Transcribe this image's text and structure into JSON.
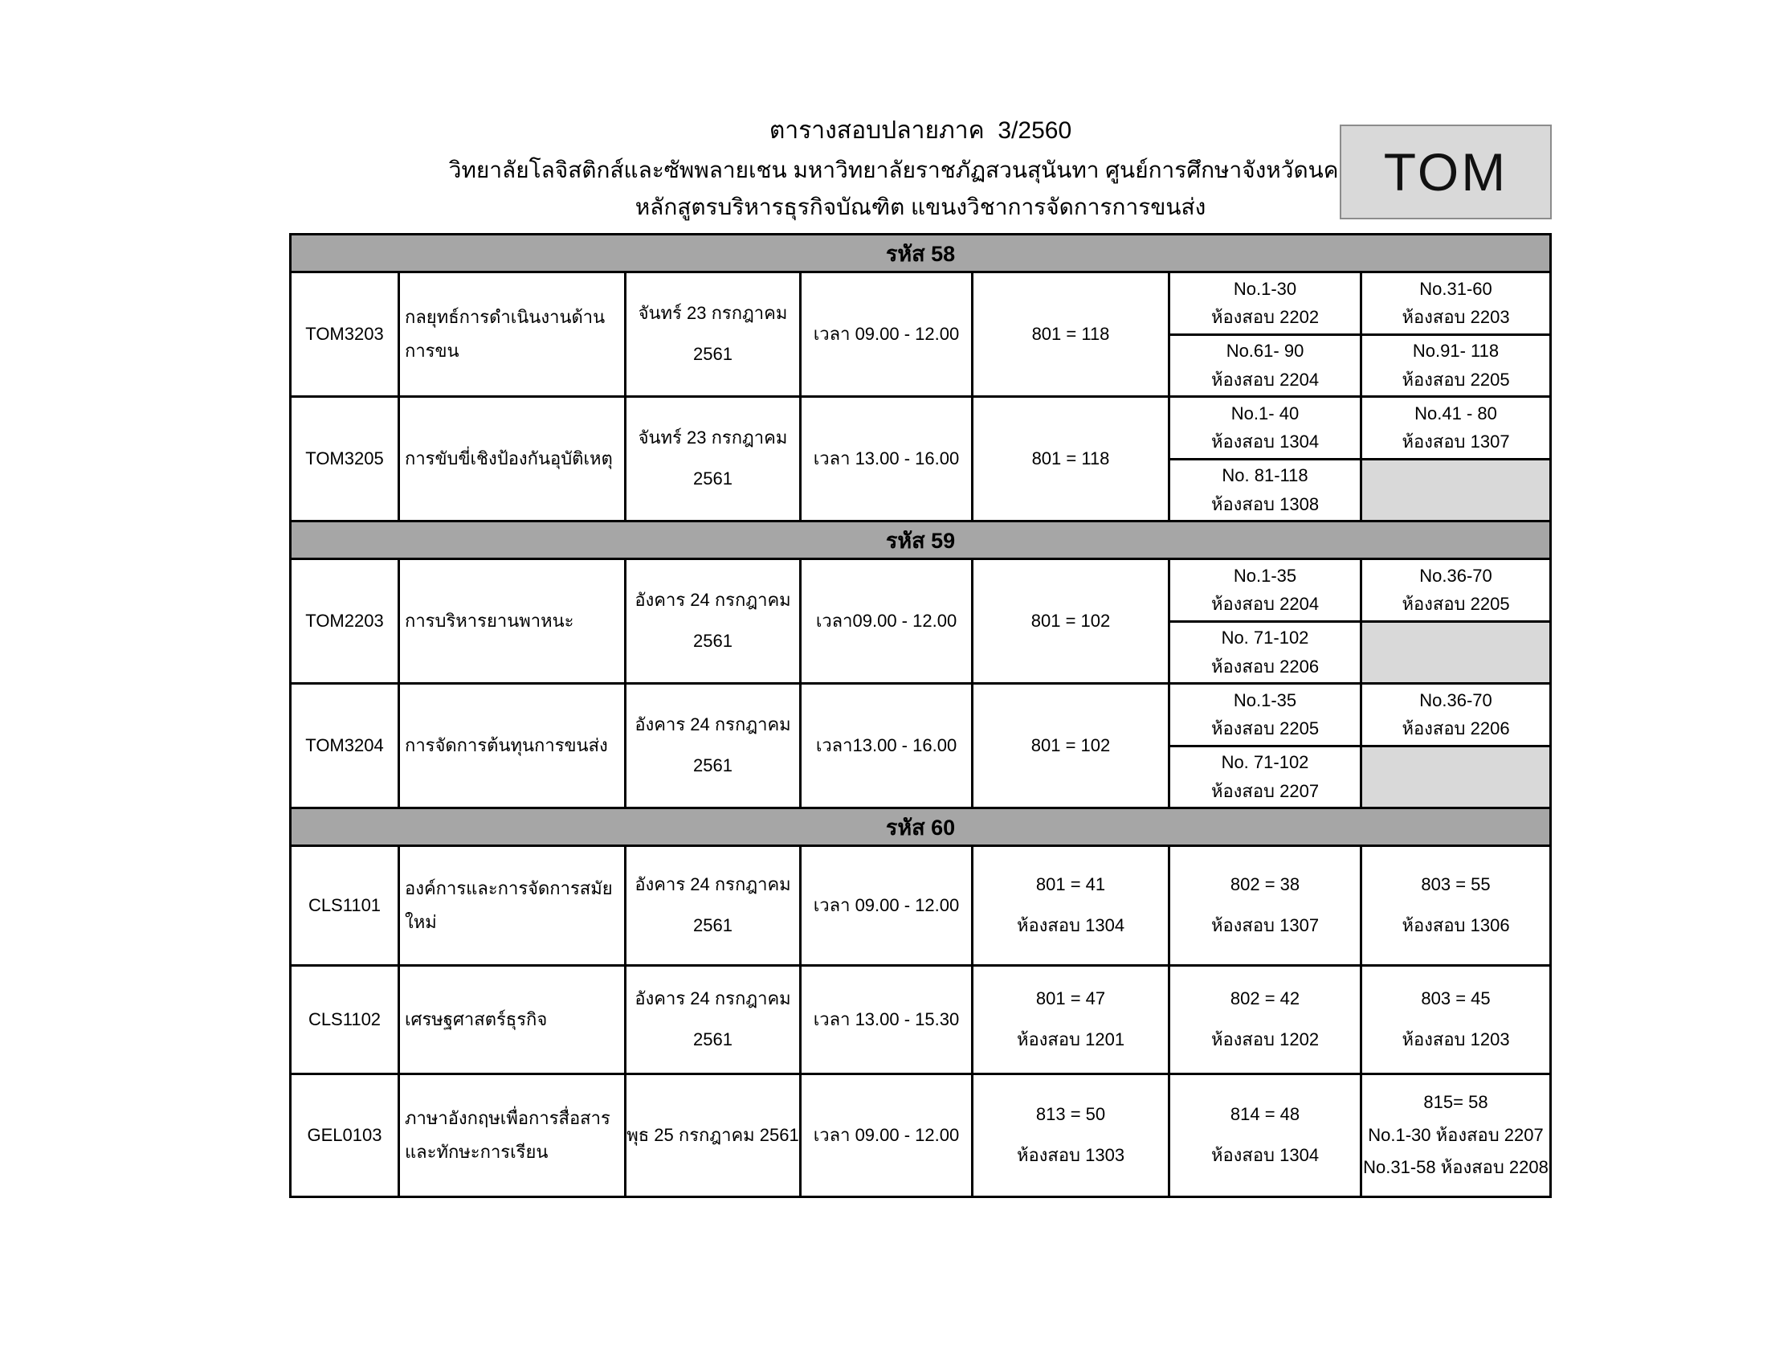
{
  "header": {
    "title": "ตารางสอบปลายภาค  3/2560",
    "subtitle1": "วิทยาลัยโลจิสติกส์และซัพพลายเชน มหาวิทยาลัยราชภัฏสวนสุนันทา ศูนย์การศึกษาจังหวัดนครปฐม",
    "subtitle2": "หลักสูตรบริหารธุรกิจบัณฑิต แขนงวิชาการจัดการการขนส่ง",
    "badge": "TOM"
  },
  "colors": {
    "section_header_bg": "#a6a6a6",
    "empty_cell_bg": "#d9d9d9",
    "badge_bg": "#d9d9d9",
    "border": "#000000"
  },
  "sections": [
    {
      "label": "รหัส 58",
      "rows": [
        {
          "code": "TOM3203",
          "name": [
            "กลยุทธ์การดำเนินงานด้านการขน"
          ],
          "date": [
            "จันทร์ 23 กรกฎาคม",
            "2561"
          ],
          "time": [
            "เวลา 09.00 - 12.00"
          ],
          "group": [
            "801 = 118"
          ],
          "c6_top": [
            "No.1-30",
            "ห้องสอบ 2202"
          ],
          "c6_bottom": [
            "No.61- 90",
            "ห้องสอบ 2204"
          ],
          "c7_top": [
            "No.31-60",
            "ห้องสอบ 2203"
          ],
          "c7_bottom": [
            "No.91- 118",
            "ห้องสอบ 2205"
          ]
        },
        {
          "code": "TOM3205",
          "name": [
            "การขับขี่เชิงป้องกันอุบัติเหตุ"
          ],
          "date": [
            "จันทร์ 23 กรกฎาคม",
            "2561"
          ],
          "time": [
            "เวลา 13.00 - 16.00"
          ],
          "group": [
            "801 = 118"
          ],
          "c6_top": [
            "No.1- 40",
            "ห้องสอบ 1304"
          ],
          "c6_bottom": [
            "No. 81-118",
            "ห้องสอบ 1308"
          ],
          "c7_top": [
            "No.41 - 80",
            "ห้องสอบ 1307"
          ],
          "c7_bottom": []
        }
      ]
    },
    {
      "label": "รหัส 59",
      "rows": [
        {
          "code": "TOM2203",
          "name": [
            "การบริหารยานพาหนะ"
          ],
          "date": [
            "อังคาร 24 กรกฎาคม",
            "2561"
          ],
          "time": [
            "เวลา09.00 - 12.00"
          ],
          "group": [
            "801 = 102"
          ],
          "c6_top": [
            "No.1-35",
            "ห้องสอบ 2204"
          ],
          "c6_bottom": [
            "No. 71-102",
            "ห้องสอบ 2206"
          ],
          "c7_top": [
            "No.36-70",
            "ห้องสอบ 2205"
          ],
          "c7_bottom": []
        },
        {
          "code": "TOM3204",
          "name": [
            "การจัดการต้นทุนการขนส่ง"
          ],
          "date": [
            "อังคาร 24 กรกฎาคม",
            "2561"
          ],
          "time": [
            "เวลา13.00 - 16.00"
          ],
          "group": [
            "801 = 102"
          ],
          "c6_top": [
            "No.1-35",
            "ห้องสอบ 2205"
          ],
          "c6_bottom": [
            "No. 71-102",
            "ห้องสอบ 2207"
          ],
          "c7_top": [
            "No.36-70",
            "ห้องสอบ 2206"
          ],
          "c7_bottom": []
        }
      ]
    },
    {
      "label": "รหัส 60",
      "rows": [
        {
          "code": "CLS1101",
          "name": [
            "องค์การและการจัดการสมัยใหม่"
          ],
          "date": [
            "อังคาร 24 กรกฎาคม",
            "2561"
          ],
          "time": [
            "เวลา 09.00 - 12.00"
          ],
          "c5": [
            "801 = 41",
            "ห้องสอบ 1304"
          ],
          "c6": [
            "802 = 38",
            "ห้องสอบ 1307"
          ],
          "c7": [
            "803 = 55",
            "ห้องสอบ 1306"
          ]
        },
        {
          "code": "CLS1102",
          "name": [
            "เศรษฐศาสตร์ธุรกิจ"
          ],
          "date": [
            "อังคาร 24 กรกฎาคม",
            "2561"
          ],
          "time": [
            "เวลา 13.00 - 15.30"
          ],
          "c5": [
            "801 = 47",
            "ห้องสอบ 1201"
          ],
          "c6": [
            "802 = 42",
            "ห้องสอบ 1202"
          ],
          "c7": [
            "803 = 45",
            "ห้องสอบ 1203"
          ]
        },
        {
          "code": "GEL0103",
          "name": [
            "ภาษาอังกฤษเพื่อการสื่อสาร",
            "และทักษะการเรียน"
          ],
          "date": [
            "พุธ 25 กรกฎาคม 2561"
          ],
          "time": [
            "เวลา 09.00 - 12.00"
          ],
          "c5": [
            "813 = 50",
            "ห้องสอบ 1303"
          ],
          "c6": [
            "814 = 48",
            "ห้องสอบ 1304"
          ],
          "c7": [
            "815= 58",
            "No.1-30 ห้องสอบ 2207",
            "No.31-58 ห้องสอบ 2208"
          ]
        }
      ]
    }
  ]
}
